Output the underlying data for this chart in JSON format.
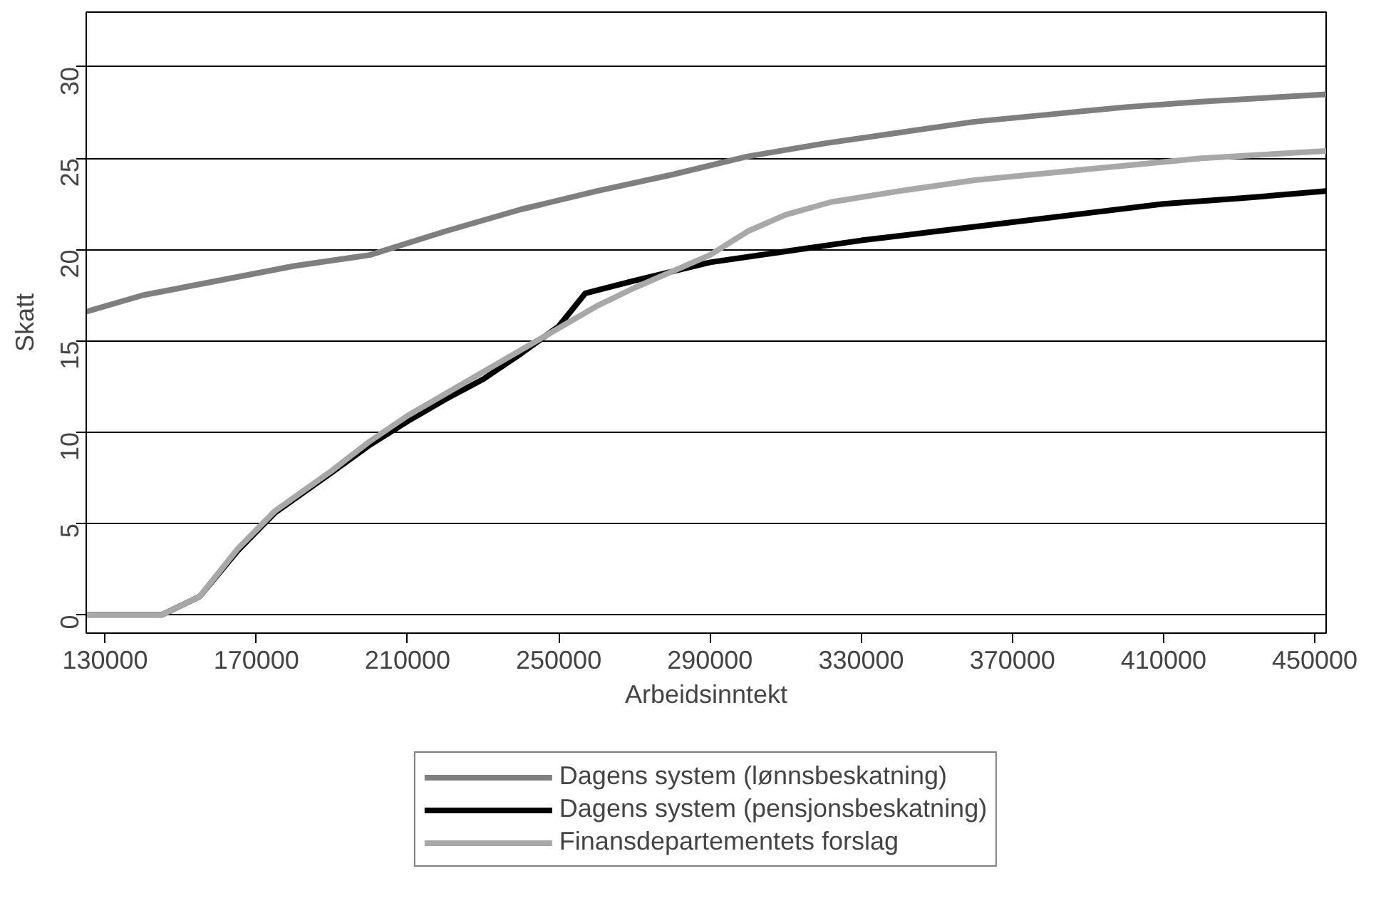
{
  "chart_data": {
    "type": "line",
    "xlabel": "Arbeidsinntekt",
    "ylabel": "Skatt",
    "xlim": [
      125000,
      453000
    ],
    "ylim": [
      -1,
      33
    ],
    "xticks": [
      130000,
      170000,
      210000,
      250000,
      290000,
      330000,
      370000,
      410000,
      450000
    ],
    "yticks": [
      0,
      5,
      10,
      15,
      20,
      25,
      30
    ],
    "grid": "y",
    "legend": "bottom",
    "marker": "none",
    "line_style": "solid",
    "series": [
      {
        "name": "Dagens system (lønnsbeskatning)",
        "color": "#7f7f7f",
        "x": [
          125000,
          140000,
          160000,
          180000,
          200000,
          220000,
          240000,
          260000,
          280000,
          300000,
          320000,
          340000,
          360000,
          380000,
          400000,
          420000,
          453000
        ],
        "values": [
          16.6,
          17.5,
          18.3,
          19.1,
          19.7,
          21.0,
          22.2,
          23.2,
          24.1,
          25.1,
          25.8,
          26.4,
          27.0,
          27.4,
          27.8,
          28.1,
          28.5
        ]
      },
      {
        "name": "Dagens system (pensjonsbeskatning)",
        "color": "#000000",
        "x": [
          125000,
          145000,
          155000,
          165000,
          175000,
          190000,
          200000,
          210000,
          220000,
          230000,
          240000,
          250000,
          257000,
          270000,
          290000,
          310000,
          330000,
          350000,
          370000,
          390000,
          410000,
          430000,
          453000
        ],
        "values": [
          0,
          0,
          1,
          3.5,
          5.6,
          7.8,
          9.3,
          10.6,
          11.8,
          12.9,
          14.3,
          15.8,
          17.6,
          18.3,
          19.3,
          19.9,
          20.5,
          21.0,
          21.5,
          22.0,
          22.5,
          22.8,
          23.2
        ]
      },
      {
        "name": "Finansdepartementets forslag",
        "color": "#a8a8a8",
        "x": [
          125000,
          145000,
          155000,
          165000,
          175000,
          190000,
          200000,
          210000,
          220000,
          230000,
          240000,
          250000,
          260000,
          270000,
          290000,
          300000,
          310000,
          322000,
          340000,
          360000,
          380000,
          400000,
          420000,
          453000
        ],
        "values": [
          0,
          0,
          1,
          3.6,
          5.7,
          7.9,
          9.5,
          10.9,
          12.1,
          13.3,
          14.5,
          15.7,
          16.9,
          17.9,
          19.7,
          21.0,
          21.9,
          22.6,
          23.2,
          23.8,
          24.2,
          24.6,
          25.0,
          25.4
        ]
      }
    ]
  }
}
